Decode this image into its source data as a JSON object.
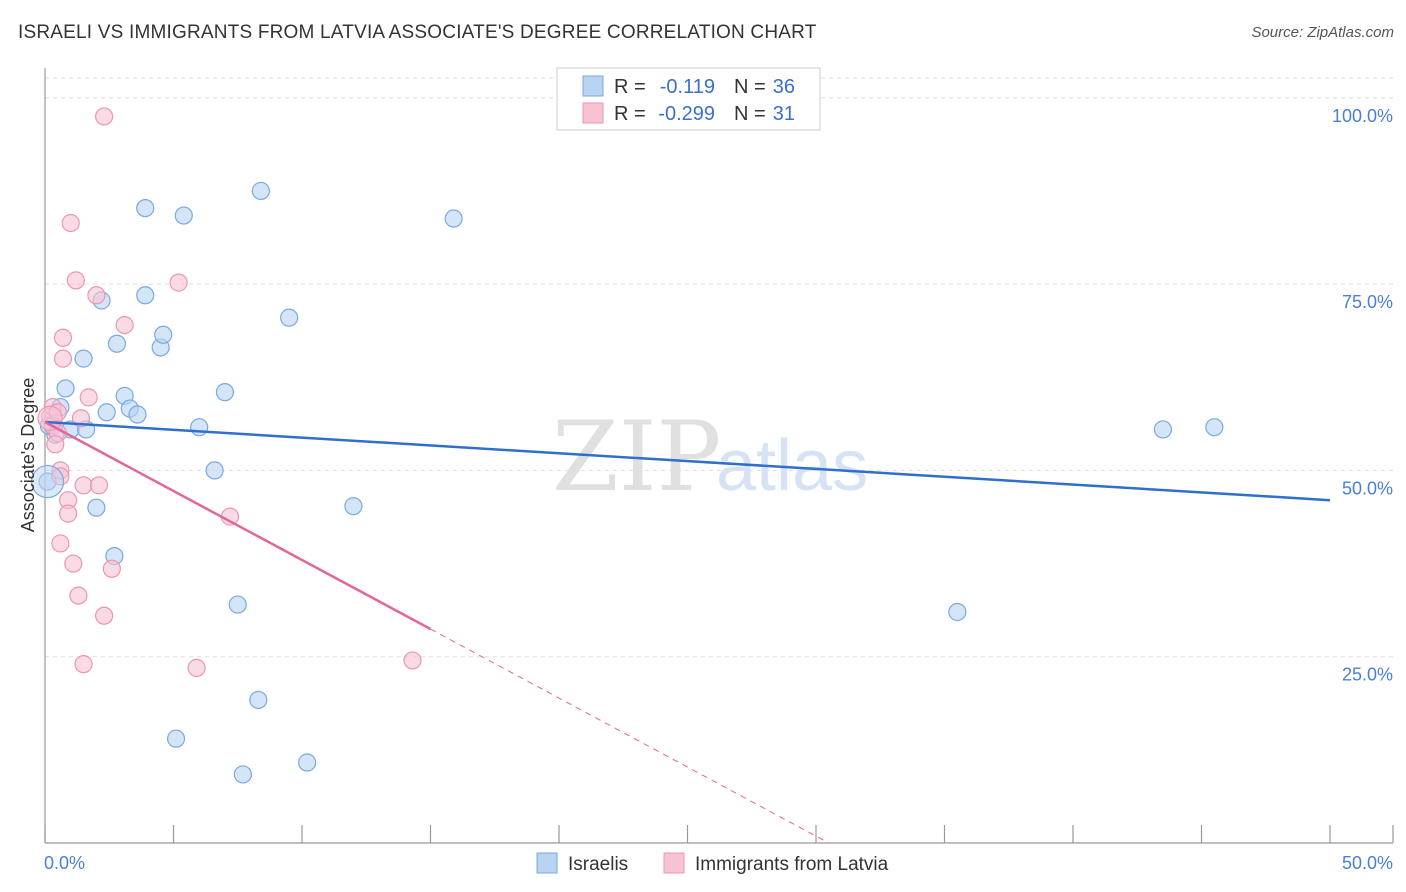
{
  "title": "ISRAELI VS IMMIGRANTS FROM LATVIA ASSOCIATE'S DEGREE CORRELATION CHART",
  "source": "Source: ZipAtlas.com",
  "watermark": {
    "zip": "ZIP",
    "atlas": "atlas"
  },
  "colors": {
    "blue_fill": "#b9d3f3",
    "blue_stroke": "#7aa8e0",
    "blue_line": "#2f6fcd",
    "pink_fill": "#f7c3d3",
    "pink_stroke": "#ec95b2",
    "pink_line": "#e0679a",
    "grid": "#dddddd",
    "axis": "#999999",
    "tick_text": "#4a7fd4"
  },
  "legend": {
    "rows": [
      {
        "series": "Israelis",
        "r_label": "R =",
        "r_value": "-0.119",
        "n_label": "N =",
        "n_value": "36"
      },
      {
        "series": "Immigrants from Latvia",
        "r_label": "R =",
        "r_value": "-0.299",
        "n_label": "N =",
        "n_value": "31"
      }
    ]
  },
  "chart_data": {
    "type": "scatter",
    "title": "ISRAELI VS IMMIGRANTS FROM LATVIA ASSOCIATE'S DEGREE CORRELATION CHART",
    "xlabel": "",
    "ylabel": "Associate's Degree",
    "xlim": [
      0,
      50
    ],
    "ylim": [
      0,
      104
    ],
    "x_tick_labels": [
      "0.0%",
      "50.0%"
    ],
    "y_ticks": [
      25,
      50,
      75,
      100
    ],
    "y_tick_labels": [
      "25.0%",
      "50.0%",
      "75.0%",
      "100.0%"
    ],
    "grid": true,
    "legend_position": "top-center",
    "series": [
      {
        "name": "Israelis",
        "color": "#b9d3f3",
        "r": -0.119,
        "n": 36,
        "trend": {
          "x0": 0,
          "y0": 56.5,
          "x1": 50,
          "y1": 46.0,
          "solid_until": 50
        },
        "points": [
          {
            "x": 0.1,
            "y": 48.5
          },
          {
            "x": 0.4,
            "y": 54.8
          },
          {
            "x": 0.6,
            "y": 58.5
          },
          {
            "x": 0.8,
            "y": 61.0
          },
          {
            "x": 1.0,
            "y": 55.5
          },
          {
            "x": 1.6,
            "y": 55.5
          },
          {
            "x": 1.5,
            "y": 65.0
          },
          {
            "x": 2.0,
            "y": 45.0
          },
          {
            "x": 2.2,
            "y": 72.8
          },
          {
            "x": 2.4,
            "y": 57.8
          },
          {
            "x": 2.7,
            "y": 38.5
          },
          {
            "x": 2.8,
            "y": 67.0
          },
          {
            "x": 3.1,
            "y": 60.0
          },
          {
            "x": 3.3,
            "y": 58.3
          },
          {
            "x": 3.6,
            "y": 57.5
          },
          {
            "x": 3.9,
            "y": 85.2
          },
          {
            "x": 3.9,
            "y": 73.5
          },
          {
            "x": 4.5,
            "y": 66.5
          },
          {
            "x": 4.6,
            "y": 68.2
          },
          {
            "x": 5.1,
            "y": 14.0
          },
          {
            "x": 5.4,
            "y": 84.2
          },
          {
            "x": 6.0,
            "y": 55.8
          },
          {
            "x": 6.6,
            "y": 50.0
          },
          {
            "x": 7.0,
            "y": 60.5
          },
          {
            "x": 7.5,
            "y": 32.0
          },
          {
            "x": 7.7,
            "y": 9.2
          },
          {
            "x": 8.3,
            "y": 19.2
          },
          {
            "x": 8.4,
            "y": 87.5
          },
          {
            "x": 9.5,
            "y": 70.5
          },
          {
            "x": 10.2,
            "y": 10.8
          },
          {
            "x": 12.0,
            "y": 45.2
          },
          {
            "x": 15.9,
            "y": 83.8
          },
          {
            "x": 35.5,
            "y": 31.0
          },
          {
            "x": 43.5,
            "y": 55.5
          },
          {
            "x": 45.5,
            "y": 55.8
          },
          {
            "x": 0.15,
            "y": 56.0
          }
        ]
      },
      {
        "name": "Immigrants from Latvia",
        "color": "#f7c3d3",
        "r": -0.299,
        "n": 31,
        "trend": {
          "x0": 0,
          "y0": 56.5,
          "x1": 30.5,
          "y1": 0,
          "solid_until": 15
        },
        "points": [
          {
            "x": 0.2,
            "y": 57.2
          },
          {
            "x": 0.3,
            "y": 56.0
          },
          {
            "x": 0.3,
            "y": 58.5
          },
          {
            "x": 0.5,
            "y": 57.8
          },
          {
            "x": 0.5,
            "y": 55.0
          },
          {
            "x": 0.6,
            "y": 50.0
          },
          {
            "x": 0.6,
            "y": 49.2
          },
          {
            "x": 0.6,
            "y": 40.2
          },
          {
            "x": 0.7,
            "y": 67.8
          },
          {
            "x": 0.7,
            "y": 65.0
          },
          {
            "x": 0.9,
            "y": 46.0
          },
          {
            "x": 0.9,
            "y": 44.2
          },
          {
            "x": 1.0,
            "y": 83.2
          },
          {
            "x": 1.1,
            "y": 37.5
          },
          {
            "x": 1.2,
            "y": 75.5
          },
          {
            "x": 1.3,
            "y": 33.2
          },
          {
            "x": 1.4,
            "y": 57.0
          },
          {
            "x": 1.5,
            "y": 24.0
          },
          {
            "x": 1.5,
            "y": 48.0
          },
          {
            "x": 1.7,
            "y": 59.8
          },
          {
            "x": 2.0,
            "y": 73.5
          },
          {
            "x": 2.1,
            "y": 48.0
          },
          {
            "x": 2.3,
            "y": 97.5
          },
          {
            "x": 2.3,
            "y": 30.5
          },
          {
            "x": 2.6,
            "y": 36.8
          },
          {
            "x": 3.1,
            "y": 69.5
          },
          {
            "x": 5.2,
            "y": 75.2
          },
          {
            "x": 5.9,
            "y": 23.5
          },
          {
            "x": 7.2,
            "y": 43.8
          },
          {
            "x": 14.3,
            "y": 24.5
          },
          {
            "x": 0.4,
            "y": 53.5
          }
        ]
      }
    ]
  }
}
